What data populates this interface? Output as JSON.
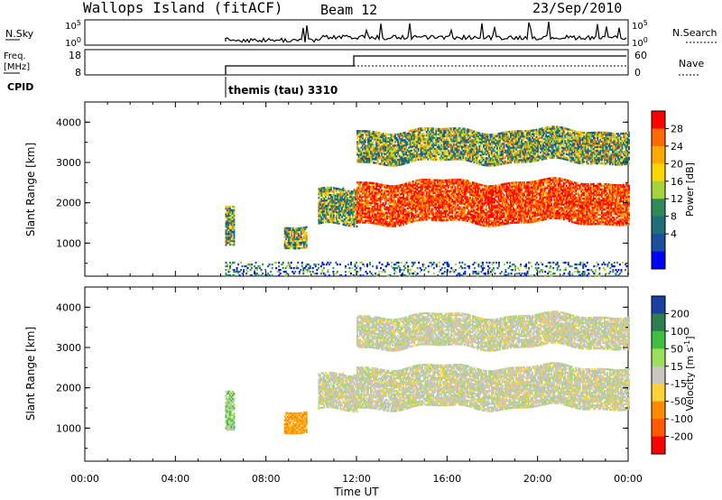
{
  "header": {
    "station": "Wallops Island (fitACF)",
    "beam": "Beam 12",
    "date": "23/Sep/2010"
  },
  "params": {
    "nsky_label": "N.Sky",
    "nsky_ticks": [
      "10^5",
      "10^0"
    ],
    "nsearch_label": "N.Search",
    "nsearch_ticks": [
      "10^5",
      "10^0"
    ],
    "freq_label": "Freq.",
    "freq_unit": "[MHz]",
    "freq_ticks": [
      "18",
      "8"
    ],
    "nave_label": "Nave",
    "nave_ticks": [
      "60",
      "0"
    ],
    "cpid_label": "CPID",
    "cpid_text": "themis (tau) 3310"
  },
  "chart_data": [
    {
      "type": "heatmap",
      "name": "power",
      "xlabel": "Time UT",
      "ylabel": "Slant Range [km]",
      "x_ticks": [
        "00:00",
        "04:00",
        "08:00",
        "12:00",
        "16:00",
        "20:00",
        "00:00"
      ],
      "xlim": [
        0,
        24
      ],
      "ylim": [
        180,
        4500
      ],
      "y_ticks": [
        1000,
        2000,
        3000,
        4000
      ],
      "colorbar": {
        "label": "Power [dB]",
        "ticks": [
          "28",
          "24",
          "20",
          "16",
          "12",
          "8",
          "4"
        ],
        "colors": [
          "#ff0000",
          "#ff6a00",
          "#ffaa00",
          "#ffd500",
          "#a4d43a",
          "#2e8b57",
          "#1f6e7a",
          "#1a4fa0",
          "#0000ff"
        ]
      },
      "echo_regions": [
        {
          "t0": 6.2,
          "t1": 6.6,
          "r0": 850,
          "r1": 1800,
          "level": "medium"
        },
        {
          "t0": 8.8,
          "t1": 9.8,
          "r0": 900,
          "r1": 1400,
          "level": "medium"
        },
        {
          "t0": 10.3,
          "t1": 12.0,
          "r0": 1400,
          "r1": 2300,
          "level": "medium"
        },
        {
          "t0": 12.0,
          "t1": 24.0,
          "r0": 1500,
          "r1": 2500,
          "level": "high"
        },
        {
          "t0": 12.0,
          "t1": 24.0,
          "r0": 3000,
          "r1": 3800,
          "level": "medium"
        },
        {
          "t0": 6.2,
          "t1": 24.0,
          "r0": 180,
          "r1": 500,
          "level": "low"
        }
      ]
    },
    {
      "type": "heatmap",
      "name": "velocity",
      "xlabel": "Time UT",
      "ylabel": "Slant Range [km]",
      "x_ticks": [
        "00:00",
        "04:00",
        "08:00",
        "12:00",
        "16:00",
        "20:00",
        "00:00"
      ],
      "xlim": [
        0,
        24
      ],
      "ylim": [
        180,
        4500
      ],
      "y_ticks": [
        1000,
        2000,
        3000,
        4000
      ],
      "colorbar": {
        "label": "Velocity [m s^-1]",
        "ticks": [
          "200",
          "100",
          "50",
          "15",
          "-15",
          "-50",
          "-100",
          "-200"
        ],
        "colors": [
          "#1a3fa0",
          "#2e7d4f",
          "#3fbf3f",
          "#9be05a",
          "#c8c8c0",
          "#ffd23a",
          "#ff8c00",
          "#ff5a00",
          "#ff0000"
        ]
      },
      "echo_regions": [
        {
          "t0": 6.2,
          "t1": 6.6,
          "r0": 850,
          "r1": 1800,
          "level": "green"
        },
        {
          "t0": 8.8,
          "t1": 9.8,
          "r0": 900,
          "r1": 1400,
          "level": "orange"
        },
        {
          "t0": 10.3,
          "t1": 12.0,
          "r0": 1400,
          "r1": 2300,
          "level": "grey"
        },
        {
          "t0": 12.0,
          "t1": 24.0,
          "r0": 1500,
          "r1": 2500,
          "level": "grey"
        },
        {
          "t0": 12.0,
          "t1": 24.0,
          "r0": 3000,
          "r1": 3800,
          "level": "grey"
        }
      ]
    }
  ]
}
